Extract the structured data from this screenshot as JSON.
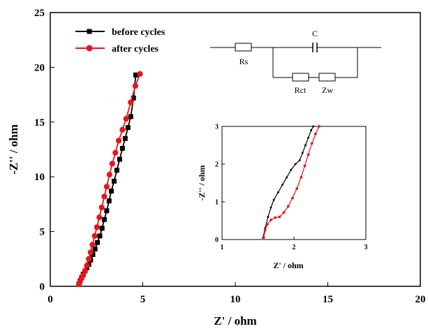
{
  "colors": {
    "before": "#000000",
    "after": "#e8141a",
    "axis": "#000000"
  },
  "circuit": {
    "labels": {
      "rs": "Rs",
      "c": "C",
      "rct": "Rct",
      "zw": "Zw"
    }
  },
  "chart_data": [
    {
      "type": "line",
      "xlabel": "Z' / ohm",
      "ylabel": "-Z'' / ohm",
      "xlim": [
        0,
        20
      ],
      "ylim": [
        0,
        25
      ],
      "xticks": [
        "0",
        "5",
        "10",
        "15",
        "20"
      ],
      "yticks": [
        "0",
        "5",
        "10",
        "15",
        "20",
        "25"
      ],
      "legend_position": "top-left",
      "series": [
        {
          "name": "before cycles",
          "marker": "square",
          "x": [
            1.55,
            1.62,
            1.7,
            1.78,
            1.88,
            1.98,
            2.08,
            2.18,
            2.3,
            2.42,
            2.55,
            2.68,
            2.8,
            2.92,
            3.05,
            3.18,
            3.3,
            3.45,
            3.6,
            3.75,
            3.9,
            4.05,
            4.2,
            4.35,
            4.5,
            4.62
          ],
          "y": [
            0.2,
            0.5,
            0.8,
            1.1,
            1.4,
            1.7,
            2.0,
            2.4,
            2.9,
            3.4,
            4.0,
            4.6,
            5.3,
            6.1,
            6.9,
            7.8,
            8.7,
            9.6,
            10.6,
            11.6,
            12.6,
            13.5,
            14.5,
            15.5,
            17.2,
            19.3
          ]
        },
        {
          "name": "after cycles",
          "marker": "circle",
          "x": [
            1.55,
            1.6,
            1.68,
            1.78,
            1.88,
            1.98,
            2.08,
            2.18,
            2.28,
            2.4,
            2.52,
            2.65,
            2.78,
            2.92,
            3.05,
            3.2,
            3.35,
            3.52,
            3.7,
            3.9,
            4.1,
            4.35,
            4.6,
            4.85
          ],
          "y": [
            0.2,
            0.4,
            0.7,
            1.0,
            1.4,
            1.9,
            2.5,
            3.1,
            3.8,
            4.6,
            5.4,
            6.3,
            7.2,
            8.2,
            9.1,
            10.2,
            11.2,
            12.2,
            13.3,
            14.3,
            15.3,
            16.8,
            18.3,
            19.4
          ]
        }
      ]
    },
    {
      "type": "line",
      "inset": true,
      "xlabel": "Z' / ohm",
      "ylabel": "-Z'' / ohm",
      "xlim": [
        1,
        3
      ],
      "ylim": [
        0,
        3
      ],
      "xticks": [
        "1",
        "2",
        "3"
      ],
      "yticks": [
        "0",
        "1",
        "2",
        "3"
      ],
      "series": [
        {
          "marker": "square",
          "x": [
            1.57,
            1.6,
            1.64,
            1.68,
            1.72,
            1.78,
            1.84,
            1.9,
            1.96,
            2.02,
            2.08,
            2.12,
            2.16,
            2.2,
            2.24,
            2.27
          ],
          "y": [
            0.05,
            0.3,
            0.6,
            0.85,
            1.05,
            1.25,
            1.45,
            1.65,
            1.85,
            2.0,
            2.1,
            2.3,
            2.5,
            2.7,
            2.9,
            3.0
          ]
        },
        {
          "marker": "circle",
          "x": [
            1.58,
            1.6,
            1.63,
            1.68,
            1.74,
            1.8,
            1.86,
            1.92,
            1.98,
            2.04,
            2.1,
            2.15,
            2.2,
            2.25,
            2.3,
            2.35
          ],
          "y": [
            0.05,
            0.25,
            0.4,
            0.52,
            0.58,
            0.6,
            0.72,
            0.88,
            1.1,
            1.35,
            1.65,
            1.95,
            2.25,
            2.55,
            2.8,
            3.0
          ]
        }
      ]
    }
  ]
}
